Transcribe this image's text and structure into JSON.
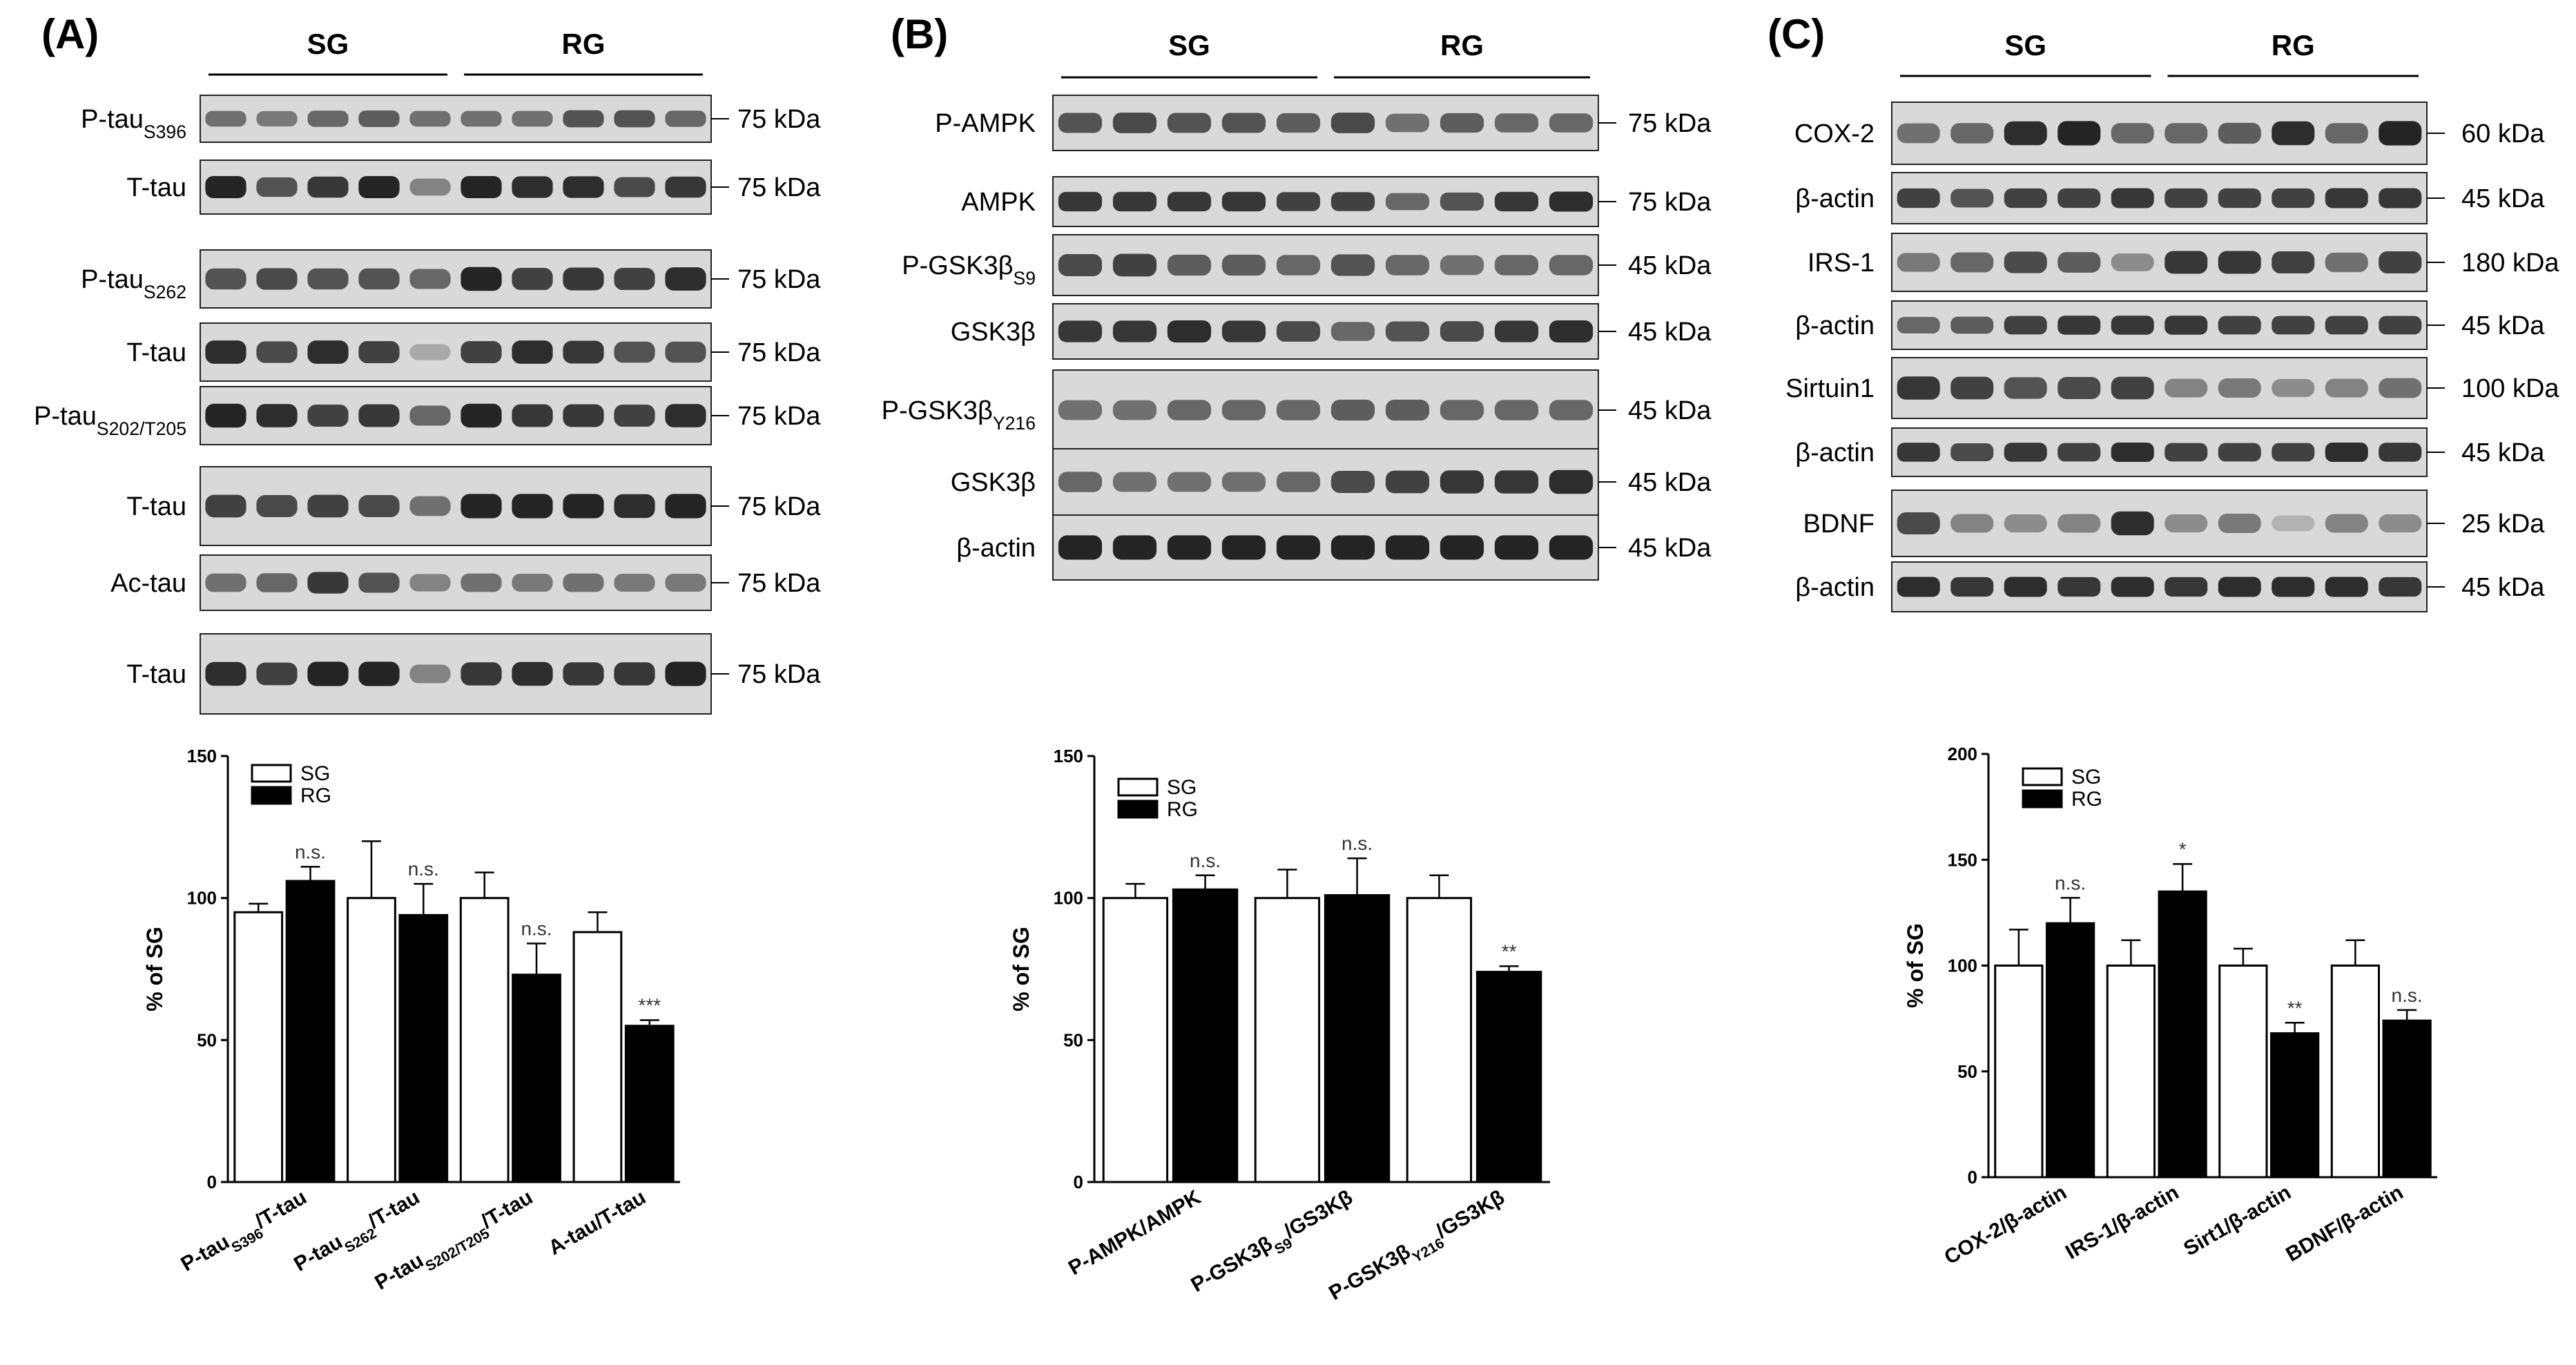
{
  "figure": {
    "colors": {
      "sg_fill": "#ffffff",
      "rg_fill": "#000000",
      "band": "#1a1a1a",
      "blot_bg": "#d9d9d9"
    },
    "panels": [
      {
        "label": "(A)",
        "groups": [
          "SG",
          "RG"
        ],
        "blots": [
          {
            "protein": "P-tauS396",
            "label_main": "P-tau",
            "label_sub": "S396",
            "size": "75 kDa",
            "intensity": [
              0.55,
              0.5,
              0.6,
              0.65,
              0.55,
              0.55,
              0.55,
              0.7,
              0.7,
              0.6
            ]
          },
          {
            "protein": "T-tau",
            "label_main": "T-tau",
            "label_sub": "",
            "size": "75 kDa",
            "intensity": [
              0.95,
              0.7,
              0.85,
              0.95,
              0.45,
              0.95,
              0.9,
              0.9,
              0.75,
              0.85
            ]
          },
          {
            "protein": "P-tauS262",
            "label_main": "P-tau",
            "label_sub": "S262",
            "size": "75 kDa",
            "intensity": [
              0.7,
              0.75,
              0.7,
              0.7,
              0.6,
              0.95,
              0.8,
              0.85,
              0.8,
              0.9
            ]
          },
          {
            "protein": "T-tau",
            "label_main": "T-tau",
            "label_sub": "",
            "size": "75 kDa",
            "intensity": [
              0.9,
              0.75,
              0.9,
              0.8,
              0.25,
              0.8,
              0.9,
              0.85,
              0.7,
              0.7
            ]
          },
          {
            "protein": "P-tauS202/T205",
            "label_main": "P-tau",
            "label_sub": "S202/T205",
            "size": "75 kDa",
            "intensity": [
              0.95,
              0.9,
              0.8,
              0.85,
              0.6,
              0.95,
              0.85,
              0.85,
              0.8,
              0.9
            ]
          },
          {
            "protein": "T-tau",
            "label_main": "T-tau",
            "label_sub": "",
            "size": "75 kDa",
            "intensity": [
              0.8,
              0.75,
              0.8,
              0.75,
              0.55,
              0.95,
              0.95,
              0.95,
              0.9,
              0.95
            ]
          },
          {
            "protein": "Ac-tau",
            "label_main": "Ac-tau",
            "label_sub": "",
            "size": "75 kDa",
            "intensity": [
              0.55,
              0.6,
              0.85,
              0.7,
              0.45,
              0.55,
              0.5,
              0.55,
              0.5,
              0.5
            ]
          },
          {
            "protein": "T-tau",
            "label_main": "T-tau",
            "label_sub": "",
            "size": "75 kDa",
            "intensity": [
              0.9,
              0.8,
              0.95,
              0.95,
              0.45,
              0.85,
              0.9,
              0.85,
              0.85,
              0.95
            ]
          }
        ]
      },
      {
        "label": "(B)",
        "groups": [
          "SG",
          "RG"
        ],
        "blots": [
          {
            "protein": "P-AMPK",
            "label_main": "P-AMPK",
            "label_sub": "",
            "size": "75 kDa",
            "intensity": [
              0.7,
              0.75,
              0.7,
              0.7,
              0.65,
              0.75,
              0.55,
              0.65,
              0.6,
              0.6
            ]
          },
          {
            "protein": "AMPK",
            "label_main": "AMPK",
            "label_sub": "",
            "size": "75 kDa",
            "intensity": [
              0.85,
              0.85,
              0.85,
              0.85,
              0.8,
              0.8,
              0.6,
              0.7,
              0.85,
              0.9
            ]
          },
          {
            "protein": "P-GSK3βS9",
            "label_main": "P-GSK3β",
            "label_sub": "S9",
            "size": "45 kDa",
            "intensity": [
              0.75,
              0.8,
              0.65,
              0.65,
              0.6,
              0.7,
              0.6,
              0.55,
              0.6,
              0.6
            ]
          },
          {
            "protein": "GSK3β",
            "label_main": "GSK3β",
            "label_sub": "",
            "size": "45 kDa",
            "intensity": [
              0.85,
              0.85,
              0.9,
              0.85,
              0.75,
              0.6,
              0.7,
              0.75,
              0.85,
              0.9
            ]
          },
          {
            "protein": "P-GSK3βY216",
            "label_main": "P-GSK3β",
            "label_sub": "Y216",
            "size": "45 kDa",
            "intensity": [
              0.55,
              0.55,
              0.6,
              0.6,
              0.6,
              0.65,
              0.65,
              0.6,
              0.6,
              0.6
            ]
          },
          {
            "protein": "GSK3β",
            "label_main": "GSK3β",
            "label_sub": "",
            "size": "45 kDa",
            "intensity": [
              0.6,
              0.55,
              0.55,
              0.55,
              0.6,
              0.75,
              0.8,
              0.85,
              0.85,
              0.9
            ]
          },
          {
            "protein": "β-actin",
            "label_main": "β-actin",
            "label_sub": "",
            "size": "45 kDa",
            "intensity": [
              0.95,
              0.95,
              0.95,
              0.95,
              0.95,
              0.95,
              0.95,
              0.95,
              0.95,
              0.95
            ]
          }
        ]
      },
      {
        "label": "(C)",
        "groups": [
          "SG",
          "RG"
        ],
        "blots": [
          {
            "protein": "COX-2",
            "label_main": "COX-2",
            "label_sub": "",
            "size": "60 kDa",
            "intensity": [
              0.55,
              0.6,
              0.9,
              0.95,
              0.6,
              0.6,
              0.65,
              0.9,
              0.6,
              0.95
            ]
          },
          {
            "protein": "β-actin",
            "label_main": "β-actin",
            "label_sub": "",
            "size": "45 kDa",
            "intensity": [
              0.8,
              0.7,
              0.8,
              0.8,
              0.85,
              0.8,
              0.8,
              0.8,
              0.85,
              0.85
            ]
          },
          {
            "protein": "IRS-1",
            "label_main": "IRS-1",
            "label_sub": "",
            "size": "180 kDa",
            "intensity": [
              0.5,
              0.6,
              0.75,
              0.65,
              0.4,
              0.85,
              0.85,
              0.8,
              0.55,
              0.8
            ]
          },
          {
            "protein": "β-actin",
            "label_main": "β-actin",
            "label_sub": "",
            "size": "45 kDa",
            "intensity": [
              0.6,
              0.65,
              0.8,
              0.85,
              0.85,
              0.85,
              0.8,
              0.8,
              0.8,
              0.8
            ]
          },
          {
            "protein": "Sirtuin1",
            "label_main": "Sirtuin1",
            "label_sub": "",
            "size": "100 kDa",
            "intensity": [
              0.85,
              0.8,
              0.7,
              0.75,
              0.8,
              0.45,
              0.5,
              0.4,
              0.45,
              0.55
            ]
          },
          {
            "protein": "β-actin",
            "label_main": "β-actin",
            "label_sub": "",
            "size": "45 kDa",
            "intensity": [
              0.85,
              0.75,
              0.85,
              0.8,
              0.9,
              0.8,
              0.8,
              0.8,
              0.9,
              0.85
            ]
          },
          {
            "protein": "BDNF",
            "label_main": "BDNF",
            "label_sub": "",
            "size": "25 kDa",
            "intensity": [
              0.75,
              0.45,
              0.4,
              0.45,
              0.9,
              0.4,
              0.5,
              0.2,
              0.45,
              0.4
            ]
          },
          {
            "protein": "β-actin",
            "label_main": "β-actin",
            "label_sub": "",
            "size": "45 kDa",
            "intensity": [
              0.9,
              0.85,
              0.9,
              0.85,
              0.9,
              0.85,
              0.9,
              0.9,
              0.9,
              0.85
            ]
          }
        ]
      }
    ]
  },
  "chart_data": [
    {
      "type": "bar",
      "panel": "(A)",
      "ylabel": "% of SG",
      "ylim": [
        0,
        150
      ],
      "yticks": [
        0,
        50,
        100,
        150
      ],
      "legend": [
        "SG",
        "RG"
      ],
      "legend_position": "top-left",
      "categories": [
        {
          "main": "P-tau",
          "sub": "S396",
          "tail": "/T-tau"
        },
        {
          "main": "P-tau",
          "sub": "S262",
          "tail": "/T-tau"
        },
        {
          "main": "P-tau",
          "sub": "S202/T205",
          "tail": "/T-tau"
        },
        {
          "main": "A-tau/T-tau",
          "sub": "",
          "tail": ""
        }
      ],
      "series": [
        {
          "name": "SG",
          "values": [
            95,
            100,
            100,
            88
          ],
          "errors": [
            3,
            20,
            9,
            7
          ]
        },
        {
          "name": "RG",
          "values": [
            106,
            94,
            73,
            55
          ],
          "errors": [
            5,
            11,
            11,
            2
          ]
        }
      ],
      "significance": [
        "n.s.",
        "n.s.",
        "n.s.",
        "***"
      ]
    },
    {
      "type": "bar",
      "panel": "(B)",
      "ylabel": "% of SG",
      "ylim": [
        0,
        150
      ],
      "yticks": [
        0,
        50,
        100,
        150
      ],
      "legend": [
        "SG",
        "RG"
      ],
      "legend_position": "top-left",
      "categories": [
        {
          "main": "P-AMPK/AMPK",
          "sub": "",
          "tail": ""
        },
        {
          "main": "P-GSK3β",
          "sub": "S9",
          "tail": "/GS3Kβ"
        },
        {
          "main": "P-GSK3β",
          "sub": "Y216",
          "tail": "/GS3Kβ"
        }
      ],
      "series": [
        {
          "name": "SG",
          "values": [
            100,
            100,
            100
          ],
          "errors": [
            5,
            10,
            8
          ]
        },
        {
          "name": "RG",
          "values": [
            103,
            101,
            74
          ],
          "errors": [
            5,
            13,
            2
          ]
        }
      ],
      "significance": [
        "n.s.",
        "n.s.",
        "**"
      ]
    },
    {
      "type": "bar",
      "panel": "(C)",
      "ylabel": "% of SG",
      "ylim": [
        0,
        200
      ],
      "yticks": [
        0,
        50,
        100,
        150,
        200
      ],
      "legend": [
        "SG",
        "RG"
      ],
      "legend_position": "top-left",
      "categories": [
        {
          "main": "COX-2/β-actin",
          "sub": "",
          "tail": ""
        },
        {
          "main": "IRS-1/β-actin",
          "sub": "",
          "tail": ""
        },
        {
          "main": "Sirt1/β-actin",
          "sub": "",
          "tail": ""
        },
        {
          "main": "BDNF/β-actin",
          "sub": "",
          "tail": ""
        }
      ],
      "series": [
        {
          "name": "SG",
          "values": [
            100,
            100,
            100,
            100
          ],
          "errors": [
            17,
            12,
            8,
            12
          ]
        },
        {
          "name": "RG",
          "values": [
            120,
            135,
            68,
            74
          ],
          "errors": [
            12,
            13,
            5,
            5
          ]
        }
      ],
      "significance": [
        "n.s.",
        "*",
        "**",
        "n.s."
      ]
    }
  ]
}
